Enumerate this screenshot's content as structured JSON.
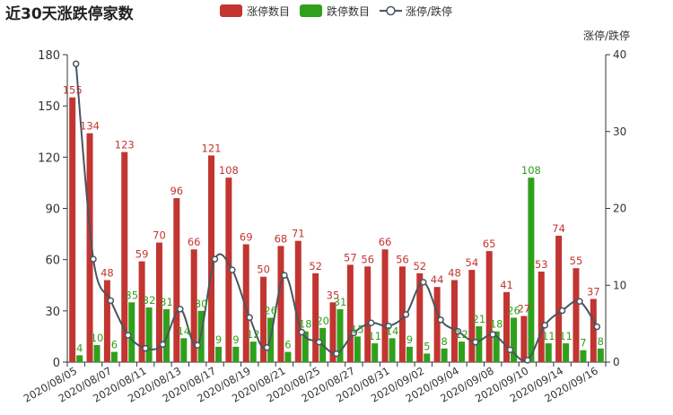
{
  "chart_data": {
    "type": "bar",
    "title": "近30天涨跌停家数",
    "legend": {
      "placement": "top-center",
      "items": [
        {
          "label": "涨停数目",
          "kind": "bar"
        },
        {
          "label": "跌停数目",
          "kind": "bar"
        },
        {
          "label": "涨停/跌停",
          "kind": "line"
        }
      ]
    },
    "y_left": {
      "ticks": [
        "0",
        "30",
        "60",
        "90",
        "120",
        "150",
        "180"
      ],
      "min": 0,
      "max": 180
    },
    "y_right": {
      "label": "涨停/跌停",
      "ticks": [
        "0",
        "10",
        "20",
        "30",
        "40"
      ],
      "min": 0,
      "max": 40
    },
    "x_tick_labels": [
      "2020/08/05",
      "2020/08/07",
      "2020/08/11",
      "2020/08/13",
      "2020/08/17",
      "2020/08/19",
      "2020/08/21",
      "2020/08/25",
      "2020/08/27",
      "2020/08/31",
      "2020/09/02",
      "2020/09/04",
      "2020/09/08",
      "2020/09/10",
      "2020/09/14",
      "2020/09/16"
    ],
    "x_tick_label_indices": [
      0,
      2,
      4,
      6,
      8,
      10,
      12,
      14,
      16,
      18,
      20,
      22,
      24,
      26,
      28,
      30
    ],
    "series": [
      {
        "name": "涨停数目",
        "color": "#c23531",
        "axis": "left",
        "values": [
          155,
          134,
          48,
          123,
          59,
          70,
          96,
          66,
          121,
          108,
          69,
          50,
          68,
          71,
          52,
          35,
          57,
          56,
          66,
          56,
          52,
          44,
          48,
          54,
          65,
          41,
          27,
          53,
          74,
          55,
          37
        ]
      },
      {
        "name": "跌停数目",
        "color": "#2fa01b",
        "axis": "left",
        "values": [
          4,
          10,
          6,
          35,
          32,
          31,
          14,
          30,
          9,
          9,
          12,
          26,
          6,
          18,
          20,
          31,
          15,
          11,
          14,
          9,
          5,
          8,
          12,
          21,
          18,
          26,
          108,
          11,
          11,
          7,
          8
        ]
      },
      {
        "name": "涨停/跌停",
        "color": "#4a5560",
        "axis": "right",
        "smooth": true,
        "values": [
          38.8,
          13.4,
          8.0,
          3.5,
          1.8,
          2.3,
          6.9,
          2.2,
          13.4,
          12.0,
          5.8,
          1.9,
          11.3,
          3.9,
          2.6,
          1.1,
          3.8,
          5.1,
          4.7,
          6.2,
          10.4,
          5.5,
          4.0,
          2.6,
          3.6,
          1.6,
          0.25,
          4.8,
          6.7,
          7.9,
          4.6
        ]
      }
    ],
    "colors": {
      "up": "#c23531",
      "down": "#2fa01b",
      "ratio": "#4a5560",
      "axis": "#333333"
    }
  }
}
